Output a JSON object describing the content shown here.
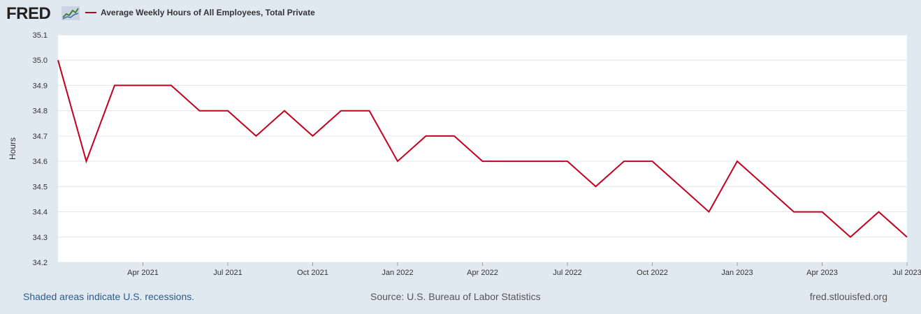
{
  "header": {
    "logo_text": "FRED",
    "legend_label": "Average Weekly Hours of All Employees, Total Private"
  },
  "colors": {
    "series": "#c1001f",
    "plot_background": "#ffffff",
    "page_background": "#e1e9f0",
    "gridline": "#e6e6e6"
  },
  "footer": {
    "recession_note": "Shaded areas indicate U.S. recessions.",
    "source": "Source: U.S. Bureau of Labor Statistics",
    "site": "fred.stlouisfed.org"
  },
  "chart_data": {
    "type": "line",
    "title": "",
    "xlabel": "",
    "ylabel": "Hours",
    "ylim": [
      34.2,
      35.1
    ],
    "yticks": [
      34.2,
      34.3,
      34.4,
      34.5,
      34.6,
      34.7,
      34.8,
      34.9,
      35.0,
      35.1
    ],
    "ytick_labels": [
      "34.2",
      "34.3",
      "34.4",
      "34.5",
      "34.6",
      "34.7",
      "34.8",
      "34.9",
      "35.0",
      "35.1"
    ],
    "xlim": [
      "2021-01",
      "2023-07"
    ],
    "xticks": [
      "2021-04",
      "2021-07",
      "2021-10",
      "2022-01",
      "2022-04",
      "2022-07",
      "2022-10",
      "2023-01",
      "2023-04",
      "2023-07"
    ],
    "xtick_labels": [
      "Apr 2021",
      "Jul 2021",
      "Oct 2021",
      "Jan 2022",
      "Apr 2022",
      "Jul 2022",
      "Oct 2022",
      "Jan 2023",
      "Apr 2023",
      "Jul 2023"
    ],
    "grid": true,
    "legend": "top-left",
    "series": [
      {
        "name": "Average Weekly Hours of All Employees, Total Private",
        "x": [
          "2021-01",
          "2021-02",
          "2021-03",
          "2021-04",
          "2021-05",
          "2021-06",
          "2021-07",
          "2021-08",
          "2021-09",
          "2021-10",
          "2021-11",
          "2021-12",
          "2022-01",
          "2022-02",
          "2022-03",
          "2022-04",
          "2022-05",
          "2022-06",
          "2022-07",
          "2022-08",
          "2022-09",
          "2022-10",
          "2022-11",
          "2022-12",
          "2023-01",
          "2023-02",
          "2023-03",
          "2023-04",
          "2023-05",
          "2023-06",
          "2023-07"
        ],
        "values": [
          35.0,
          34.6,
          34.9,
          34.9,
          34.9,
          34.8,
          34.8,
          34.7,
          34.8,
          34.7,
          34.8,
          34.8,
          34.6,
          34.7,
          34.7,
          34.6,
          34.6,
          34.6,
          34.6,
          34.5,
          34.6,
          34.6,
          34.5,
          34.4,
          34.6,
          34.5,
          34.4,
          34.4,
          34.3,
          34.4,
          34.3
        ]
      }
    ]
  }
}
